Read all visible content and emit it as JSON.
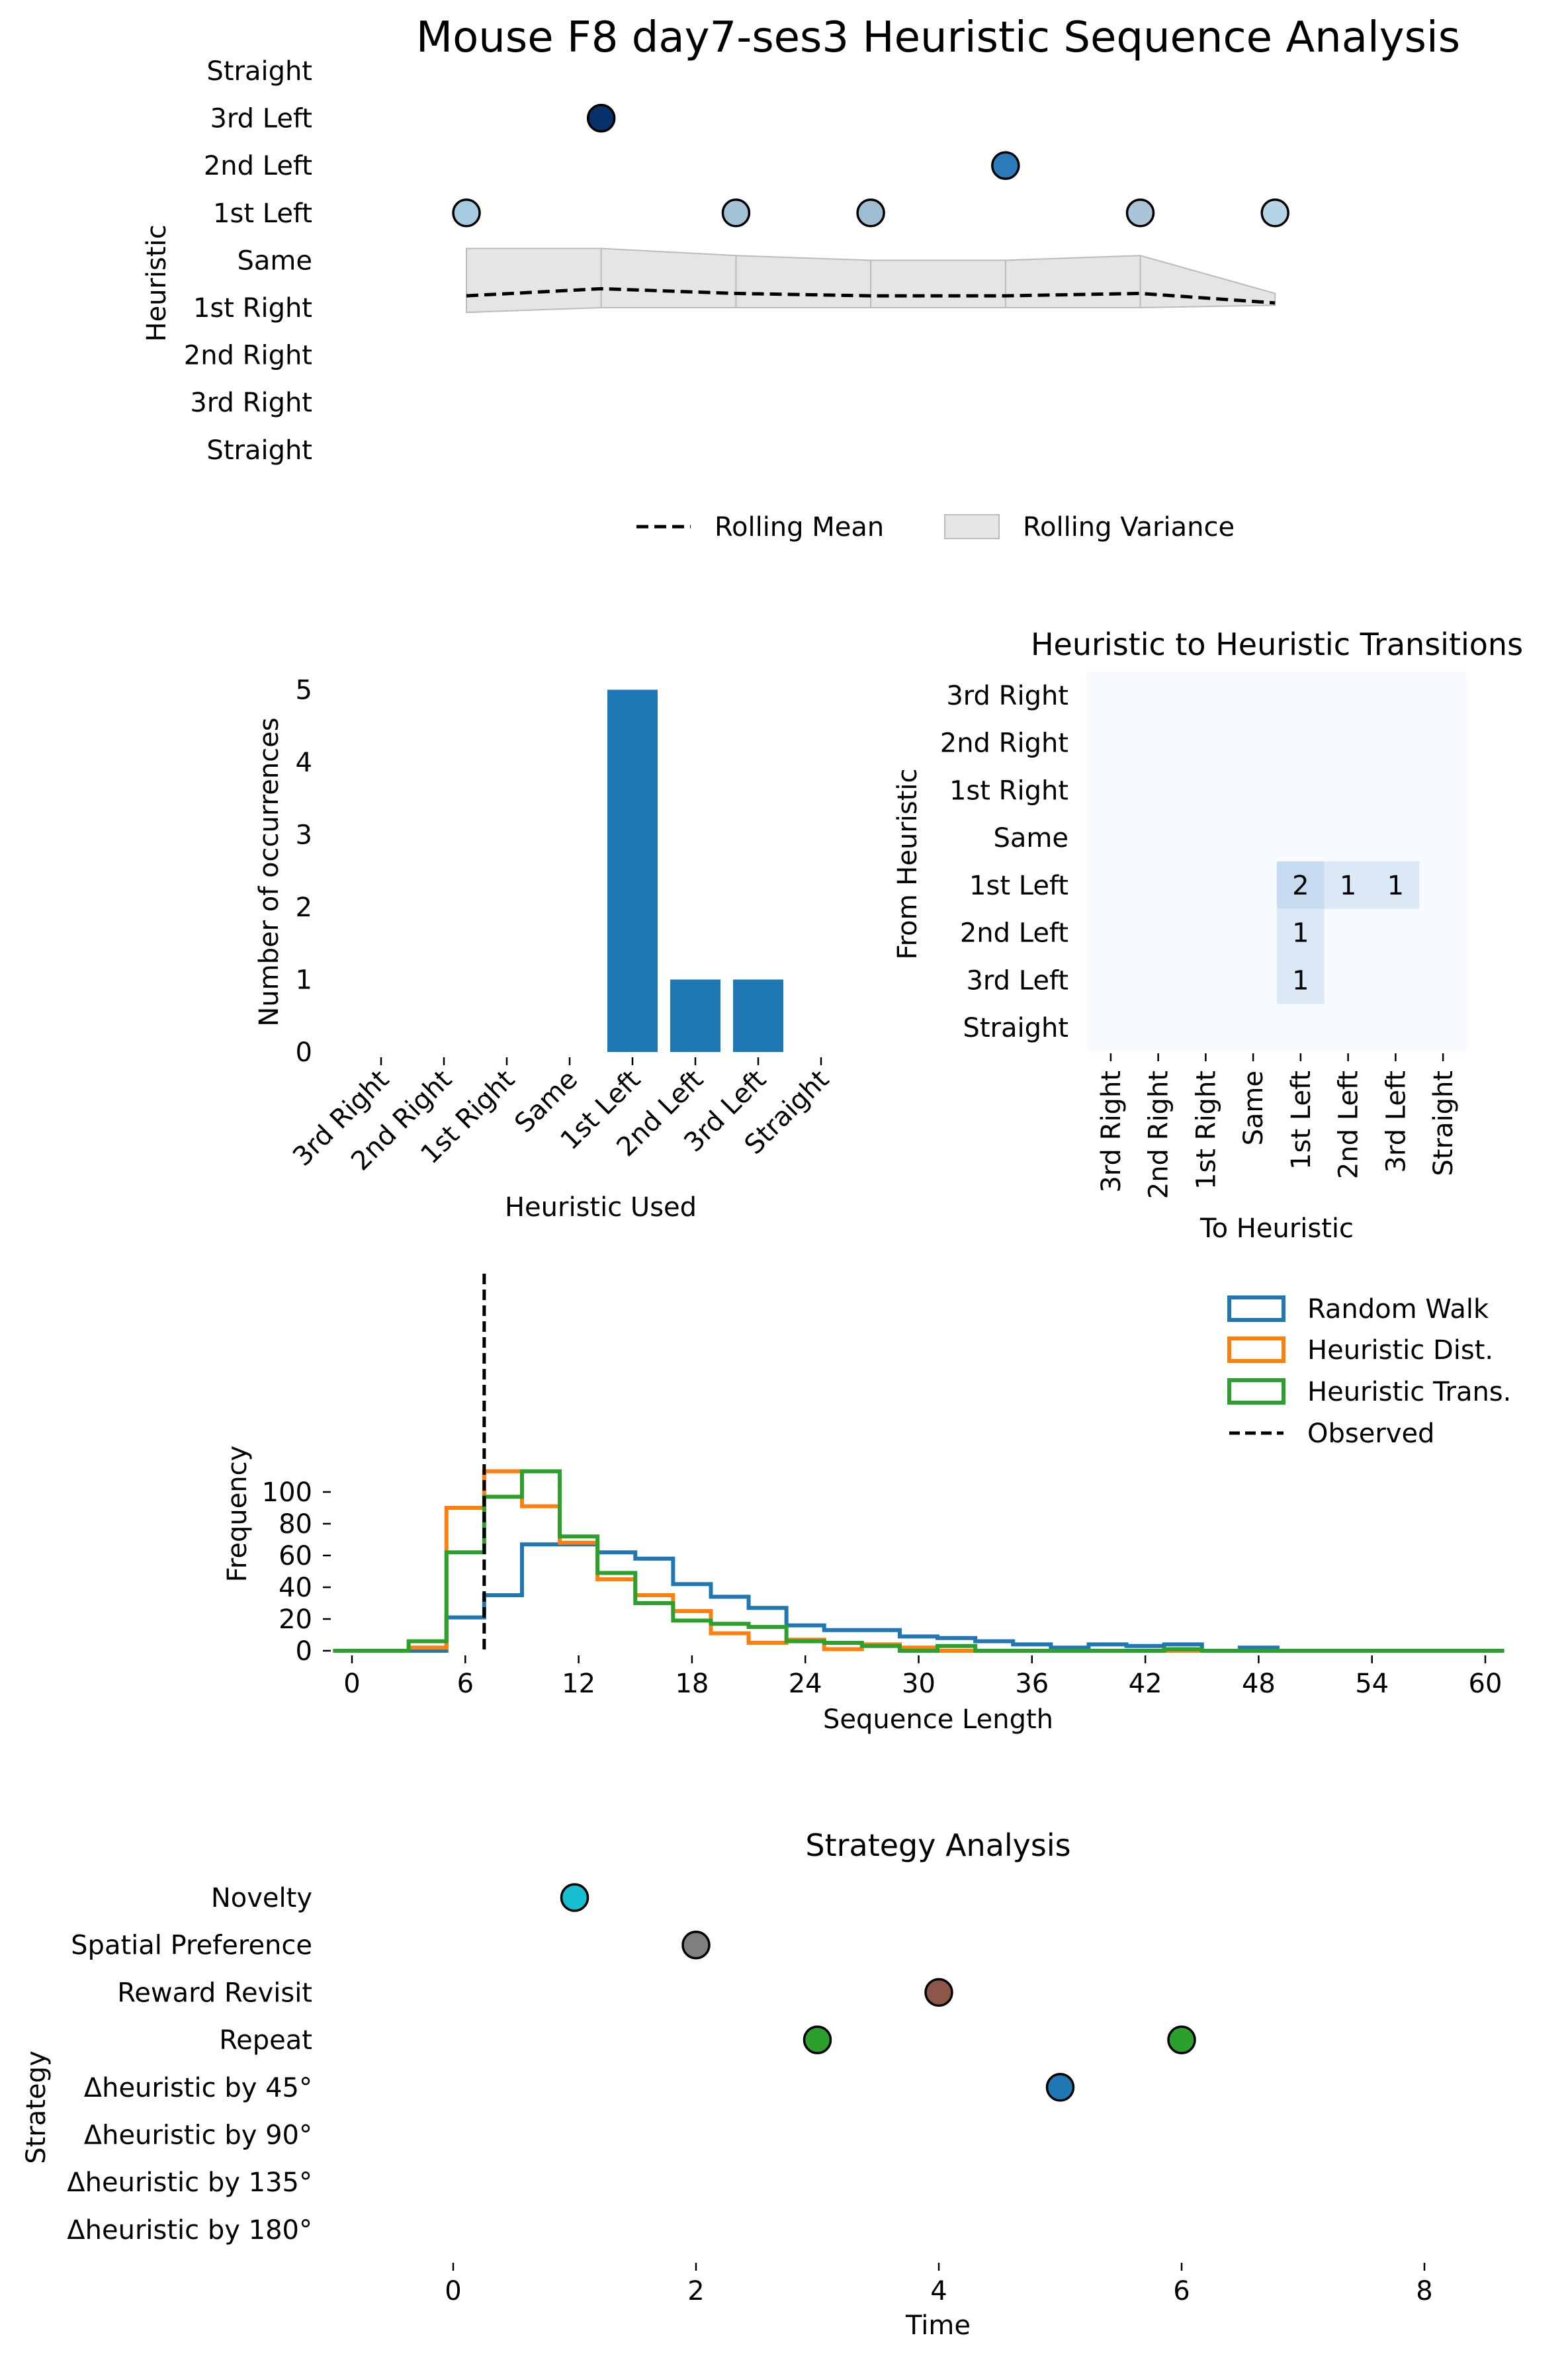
{
  "figure_title": "Mouse F8 day7-ses3 Heuristic Sequence Analysis",
  "colors": {
    "rw": "#1f77b4",
    "hd": "#ff7f0e",
    "ht": "#2ca02c",
    "bar": "#1f77b4",
    "band": "#e5e5e5",
    "band_edge": "#bbbbbb",
    "heat_bg": "#f7fbff",
    "heat_light": "#dbe9f6",
    "heat_mid": "#c6dbef"
  },
  "chart_data": [
    {
      "id": "sequence",
      "type": "scatter",
      "title": "Mouse F8 day7-ses3 Heuristic Sequence Analysis",
      "xlabel": "",
      "ylabel": "Heuristic",
      "y_categories": [
        "Straight",
        "3rd Left",
        "2nd Left",
        "1st Left",
        "Same",
        "1st Right",
        "2nd Right",
        "3rd Right",
        "Straight"
      ],
      "points": [
        {
          "x": 0,
          "y": "1st Left",
          "color": "#a6cae0"
        },
        {
          "x": 1,
          "y": "3rd Left",
          "color": "#08306b"
        },
        {
          "x": 2,
          "y": "1st Left",
          "color": "#a3c2d6"
        },
        {
          "x": 3,
          "y": "1st Left",
          "color": "#9fbdd1"
        },
        {
          "x": 4,
          "y": "2nd Left",
          "color": "#2b7bba"
        },
        {
          "x": 5,
          "y": "1st Left",
          "color": "#a9c4d6"
        },
        {
          "x": 6,
          "y": "1st Left",
          "color": "#b5d4e6"
        }
      ],
      "rolling_mean": [
        3.25,
        3.4,
        3.3,
        3.25,
        3.25,
        3.3,
        3.1
      ],
      "rolling_variance_upper": [
        4.25,
        4.25,
        4.1,
        4.0,
        4.0,
        4.1,
        3.3
      ],
      "rolling_variance_lower": [
        2.9,
        3.0,
        3.0,
        3.0,
        3.0,
        3.0,
        3.05
      ],
      "legend": [
        "Rolling Mean",
        "Rolling Variance"
      ],
      "grid": false
    },
    {
      "id": "counts",
      "type": "bar",
      "title": "",
      "xlabel": "Heuristic Used",
      "ylabel": "Number of occurrences",
      "categories": [
        "3rd Right",
        "2nd Right",
        "1st Right",
        "Same",
        "1st Left",
        "2nd Left",
        "3rd Left",
        "Straight"
      ],
      "values": [
        0,
        0,
        0,
        0,
        5,
        1,
        1,
        0
      ],
      "ylim": [
        0,
        5
      ],
      "yticks": [
        "0",
        "1",
        "2",
        "3",
        "4",
        "5"
      ]
    },
    {
      "id": "transitions",
      "type": "heatmap",
      "title": "Heuristic to Heuristic Transitions",
      "xlabel": "To Heuristic",
      "ylabel": "From Heuristic",
      "rows": [
        "3rd Right",
        "2nd Right",
        "1st Right",
        "Same",
        "1st Left",
        "2nd Left",
        "3rd Left",
        "Straight"
      ],
      "cols": [
        "3rd Right",
        "2nd Right",
        "1st Right",
        "Same",
        "1st Left",
        "2nd Left",
        "3rd Left",
        "Straight"
      ],
      "cells": [
        {
          "row": 4,
          "col": 4,
          "value": 2,
          "label": "2"
        },
        {
          "row": 4,
          "col": 5,
          "value": 1,
          "label": "1"
        },
        {
          "row": 4,
          "col": 6,
          "value": 1,
          "label": "1"
        },
        {
          "row": 5,
          "col": 4,
          "value": 1,
          "label": "1"
        },
        {
          "row": 6,
          "col": 4,
          "value": 1,
          "label": "1"
        }
      ]
    },
    {
      "id": "histogram",
      "type": "line",
      "title": "",
      "xlabel": "Sequence Length",
      "ylabel": "Frequency",
      "xlim": [
        -1,
        61
      ],
      "ylim": [
        0,
        120
      ],
      "xticks": [
        "0",
        "6",
        "12",
        "18",
        "24",
        "30",
        "36",
        "42",
        "48",
        "54",
        "60"
      ],
      "yticks": [
        "0",
        "20",
        "40",
        "60",
        "80",
        "100"
      ],
      "bin_edges": [
        -1,
        1,
        3,
        5,
        7,
        9,
        11,
        13,
        15,
        17,
        19,
        21,
        23,
        25,
        27,
        29,
        31,
        33,
        35,
        37,
        39,
        41,
        43,
        45,
        47,
        49,
        51,
        53,
        55,
        57,
        59,
        61
      ],
      "series": [
        {
          "name": "Random Walk",
          "key": "rw",
          "counts": [
            0,
            0,
            0,
            21,
            35,
            67,
            67,
            62,
            58,
            42,
            34,
            27,
            16,
            13,
            13,
            9,
            8,
            6,
            4,
            2,
            4,
            3,
            4,
            0,
            2,
            0,
            0,
            0,
            0,
            0,
            0
          ]
        },
        {
          "name": "Heuristic Dist.",
          "key": "hd",
          "counts": [
            0,
            0,
            2,
            90,
            113,
            91,
            68,
            45,
            35,
            25,
            11,
            5,
            7,
            1,
            4,
            2,
            0,
            0,
            0,
            0,
            0,
            0,
            0,
            0,
            0,
            0,
            0,
            0,
            0,
            0,
            0
          ]
        },
        {
          "name": "Heuristic Trans.",
          "key": "ht",
          "counts": [
            0,
            0,
            6,
            62,
            97,
            113,
            72,
            49,
            30,
            19,
            17,
            15,
            6,
            5,
            3,
            0,
            3,
            0,
            0,
            0,
            0,
            0,
            1,
            0,
            0,
            0,
            0,
            0,
            0,
            0,
            0
          ]
        }
      ],
      "observed": {
        "name": "Observed",
        "x": 7
      },
      "legend_position": "top-right"
    },
    {
      "id": "strategy",
      "type": "scatter",
      "title": "Strategy Analysis",
      "xlabel": "Time",
      "ylabel": "Strategy",
      "xlim": [
        -0.8,
        8.8
      ],
      "xticks": [
        "0",
        "2",
        "4",
        "6",
        "8"
      ],
      "y_categories": [
        "Novelty",
        "Spatial Preference",
        "Reward Revisit",
        "Repeat",
        "Δheuristic by 45°",
        "Δheuristic by 90°",
        "Δheuristic by 135°",
        "Δheuristic by 180°"
      ],
      "points": [
        {
          "x": 1,
          "y": "Novelty",
          "color": "#17becf"
        },
        {
          "x": 2,
          "y": "Spatial Preference",
          "color": "#7f7f7f"
        },
        {
          "x": 3,
          "y": "Repeat",
          "color": "#2ca02c"
        },
        {
          "x": 4,
          "y": "Reward Revisit",
          "color": "#8c564b"
        },
        {
          "x": 5,
          "y": "Δheuristic by 45°",
          "color": "#1f77b4"
        },
        {
          "x": 6,
          "y": "Repeat",
          "color": "#2ca02c"
        }
      ]
    }
  ]
}
